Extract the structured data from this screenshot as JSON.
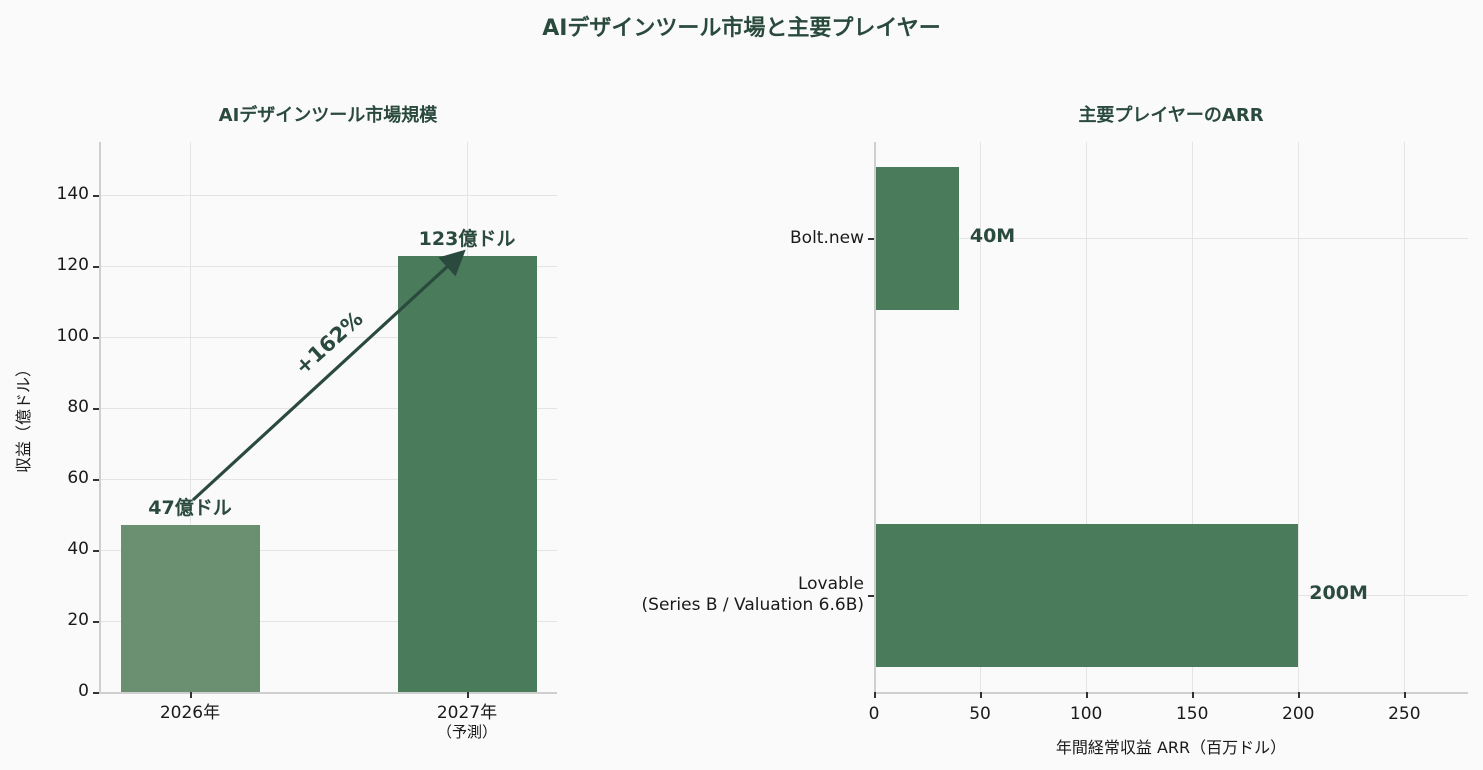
{
  "figure": {
    "title": "AIデザインツール市場と主要プレイヤー",
    "background": "#fafafa",
    "text_color": "#2b4a3e"
  },
  "chart_data": [
    {
      "type": "bar",
      "title": "AIデザインツール市場規模",
      "categories": [
        "2026年",
        "2027年\n（予測）"
      ],
      "category_lines": [
        [
          "2026年"
        ],
        [
          "2027年",
          "（予測）"
        ]
      ],
      "values": [
        47,
        123
      ],
      "value_labels": [
        "47億ドル",
        "123億ドル"
      ],
      "colors": [
        "#6a8f71",
        "#4a7b5a"
      ],
      "xlabel": "",
      "ylabel": "収益（億ドル）",
      "ylim": [
        0,
        155
      ],
      "yticks": [
        0,
        20,
        40,
        60,
        80,
        100,
        120,
        140
      ],
      "grid": true,
      "annotation": {
        "text": "+162%",
        "from": [
          0,
          47
        ],
        "to": [
          1,
          123
        ],
        "arrow": true
      }
    },
    {
      "type": "bar",
      "orientation": "horizontal",
      "title": "主要プレイヤーのARR",
      "categories": [
        "Bolt.new",
        "Lovable\n(Series B / Valuation 6.6B)"
      ],
      "category_lines": [
        [
          "Bolt.new"
        ],
        [
          "Lovable",
          "(Series B / Valuation 6.6B)"
        ]
      ],
      "values": [
        40,
        200
      ],
      "value_labels": [
        "40M",
        "200M"
      ],
      "colors": [
        "#4a7b5a",
        "#4a7b5a"
      ],
      "xlabel": "年間経常収益 ARR（百万ドル）",
      "ylabel": "",
      "xlim": [
        0,
        280
      ],
      "xticks": [
        0,
        50,
        100,
        150,
        200,
        250
      ],
      "grid": true
    }
  ]
}
